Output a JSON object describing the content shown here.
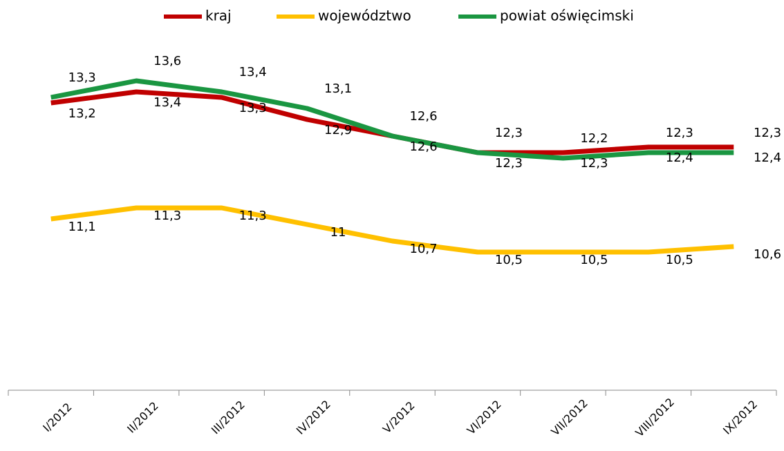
{
  "chart_data": {
    "type": "line",
    "categories": [
      "I/2012",
      "II/2012",
      "III/2012",
      "IV/2012",
      "V/2012",
      "VI/2012",
      "VII/2012",
      "VIII/2012",
      "IX/2012"
    ],
    "series": [
      {
        "name": "województwo",
        "color": "#ffc000",
        "values": [
          11.1,
          11.3,
          11.3,
          11,
          10.7,
          10.5,
          10.5,
          10.5,
          10.6
        ],
        "value_labels": [
          "11,1",
          "11,3",
          "11,3",
          "11",
          "10,7",
          "10,5",
          "10,5",
          "10,5",
          "10,6"
        ]
      },
      {
        "name": "kraj",
        "color": "#c00000",
        "values": [
          13.2,
          13.4,
          13.3,
          12.9,
          12.6,
          12.3,
          12.3,
          12.4,
          12.4
        ],
        "value_labels": [
          "13,2",
          "13,4",
          "13,3",
          "12,9",
          "12,6",
          "12,3",
          "12,3",
          "12,4",
          "12,4"
        ]
      },
      {
        "name": "powiat oświęcimski",
        "color": "#1a9641",
        "values": [
          13.3,
          13.6,
          13.4,
          13.1,
          12.6,
          12.3,
          12.2,
          12.3,
          12.3
        ],
        "value_labels": [
          "13,3",
          "13,6",
          "13,4",
          "13,1",
          "12,6",
          "12,3",
          "12,2",
          "12,3",
          "12,3"
        ]
      }
    ],
    "ylim": [
      8,
      14
    ],
    "legend": "top"
  }
}
